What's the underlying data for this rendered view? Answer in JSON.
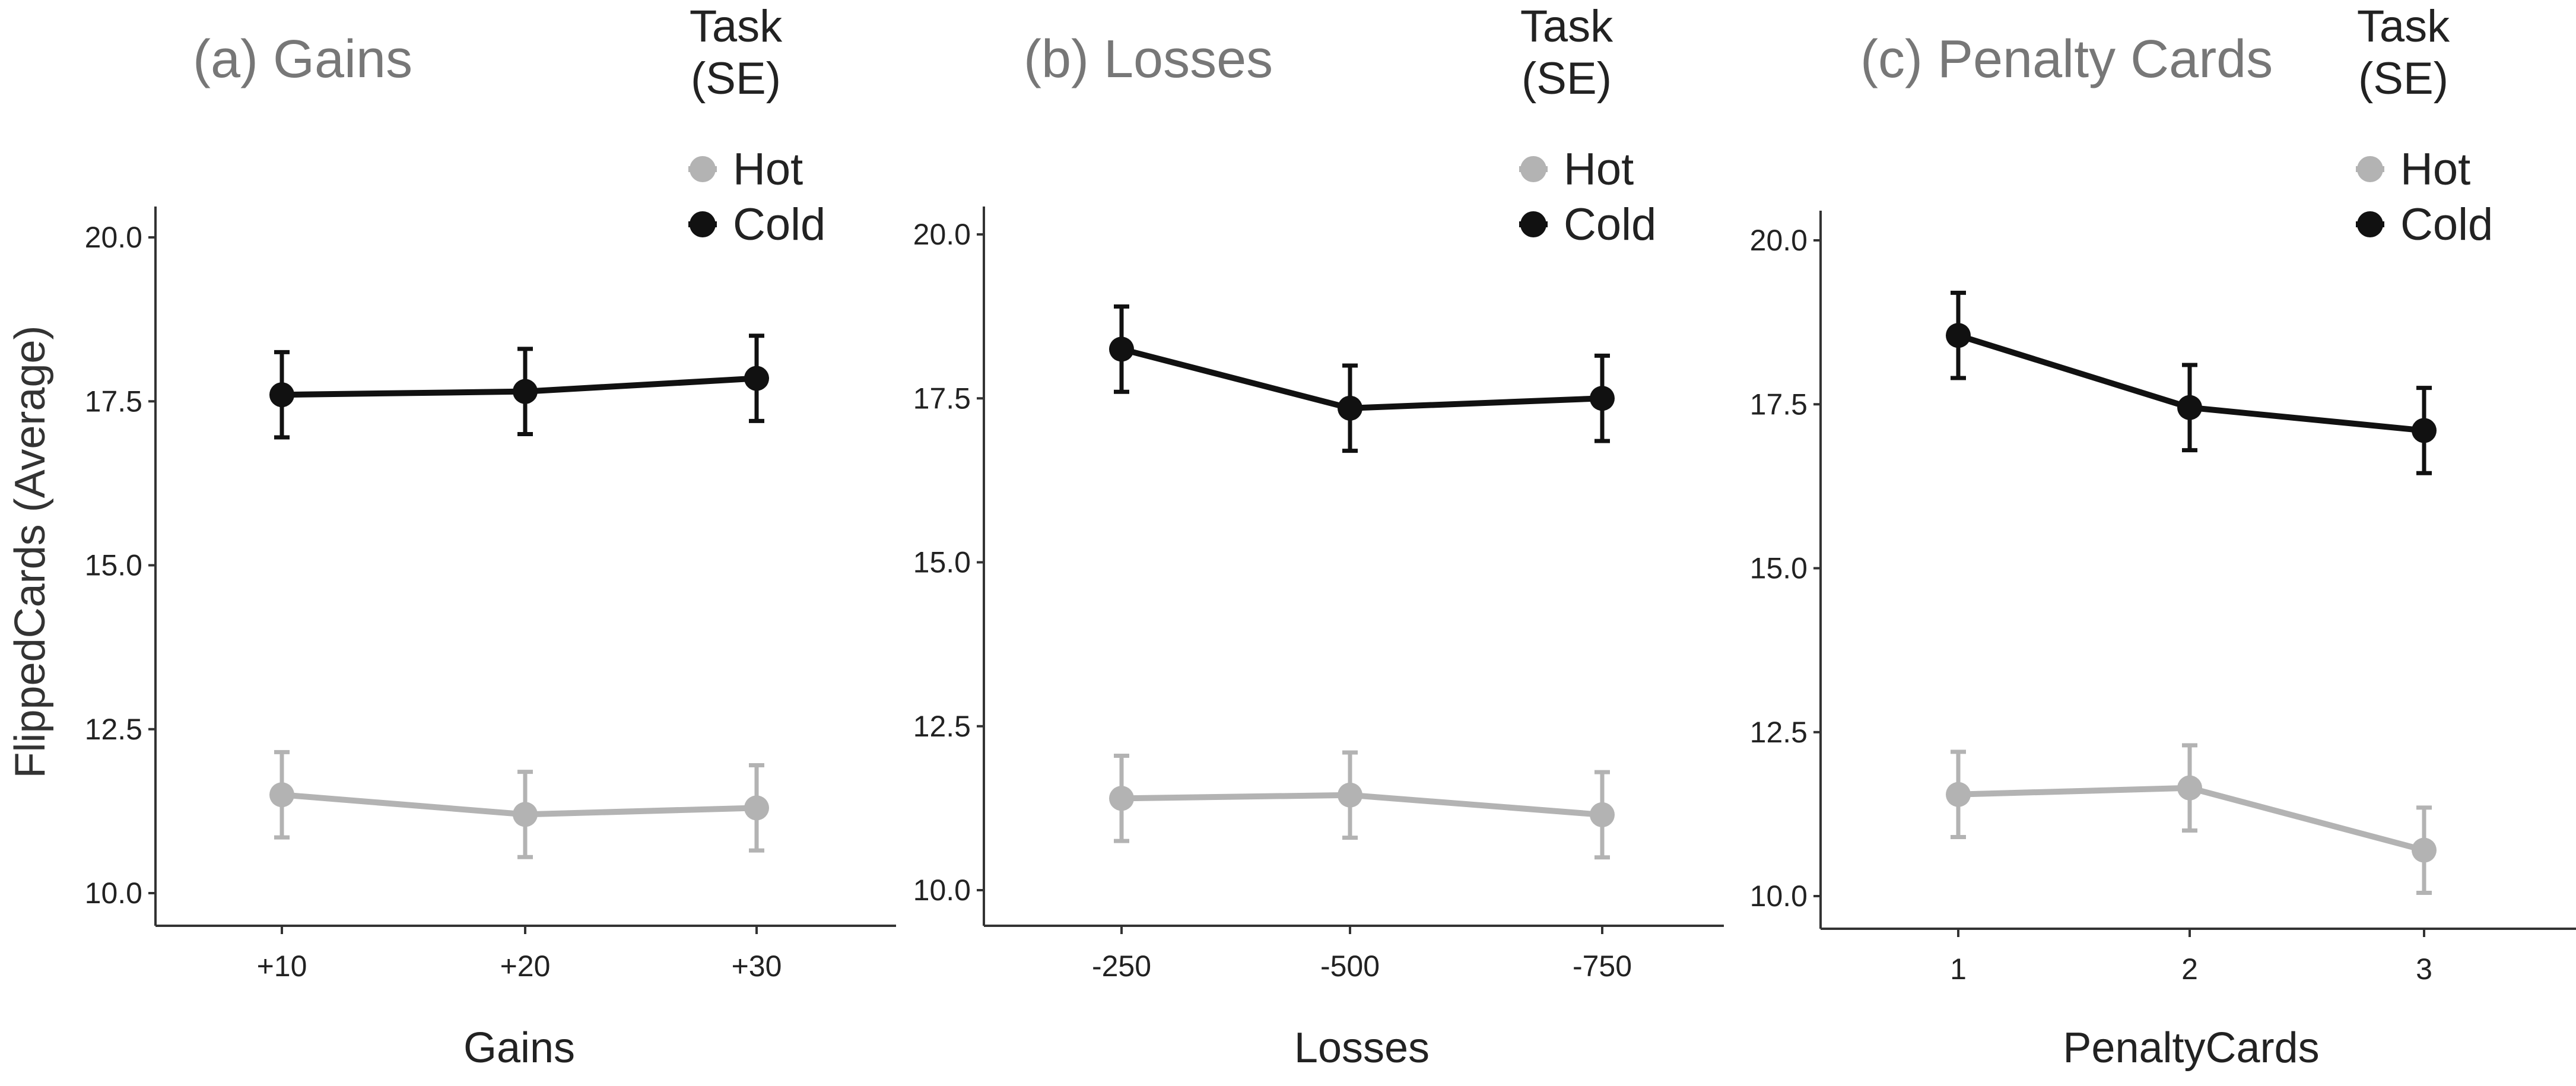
{
  "figure": {
    "ylabel": "FlippedCards (Average)",
    "yticks": [
      "10.0",
      "12.5",
      "15.0",
      "17.5",
      "20.0"
    ],
    "legend_title": "Task\n(SE)",
    "legend_title_lines": [
      "Task",
      "(SE)"
    ],
    "colors": {
      "Hot": "#b3b3b3",
      "Cold": "#111111"
    }
  },
  "chart_data": [
    {
      "type": "line",
      "title": "(a) Gains",
      "xlabel": "Gains",
      "ylabel": "FlippedCards (Average)",
      "ylim": [
        10,
        20
      ],
      "categories": [
        "+10",
        "+20",
        "+30"
      ],
      "legend": [
        "Hot",
        "Cold"
      ],
      "series": [
        {
          "name": "Hot",
          "values": [
            11.5,
            11.2,
            11.3
          ],
          "se": [
            0.65,
            0.65,
            0.65
          ]
        },
        {
          "name": "Cold",
          "values": [
            17.6,
            17.65,
            17.85
          ],
          "se": [
            0.65,
            0.65,
            0.65
          ]
        }
      ]
    },
    {
      "type": "line",
      "title": "(b) Losses",
      "xlabel": "Losses",
      "ylabel": "FlippedCards (Average)",
      "ylim": [
        10,
        20
      ],
      "categories": [
        "-250",
        "-500",
        "-750"
      ],
      "legend": [
        "Hot",
        "Cold"
      ],
      "series": [
        {
          "name": "Hot",
          "values": [
            11.4,
            11.45,
            11.15
          ],
          "se": [
            0.65,
            0.65,
            0.65
          ]
        },
        {
          "name": "Cold",
          "values": [
            18.25,
            17.35,
            17.5
          ],
          "se": [
            0.65,
            0.65,
            0.65
          ]
        }
      ]
    },
    {
      "type": "line",
      "title": "(c) Penalty Cards",
      "xlabel": "PenaltyCards",
      "ylabel": "FlippedCards (Average)",
      "ylim": [
        10,
        20
      ],
      "categories": [
        "1",
        "2",
        "3"
      ],
      "legend": [
        "Hot",
        "Cold"
      ],
      "series": [
        {
          "name": "Hot",
          "values": [
            11.55,
            11.65,
            10.7
          ],
          "se": [
            0.65,
            0.65,
            0.65
          ]
        },
        {
          "name": "Cold",
          "values": [
            18.55,
            17.45,
            17.1
          ],
          "se": [
            0.65,
            0.65,
            0.65
          ]
        }
      ]
    }
  ]
}
